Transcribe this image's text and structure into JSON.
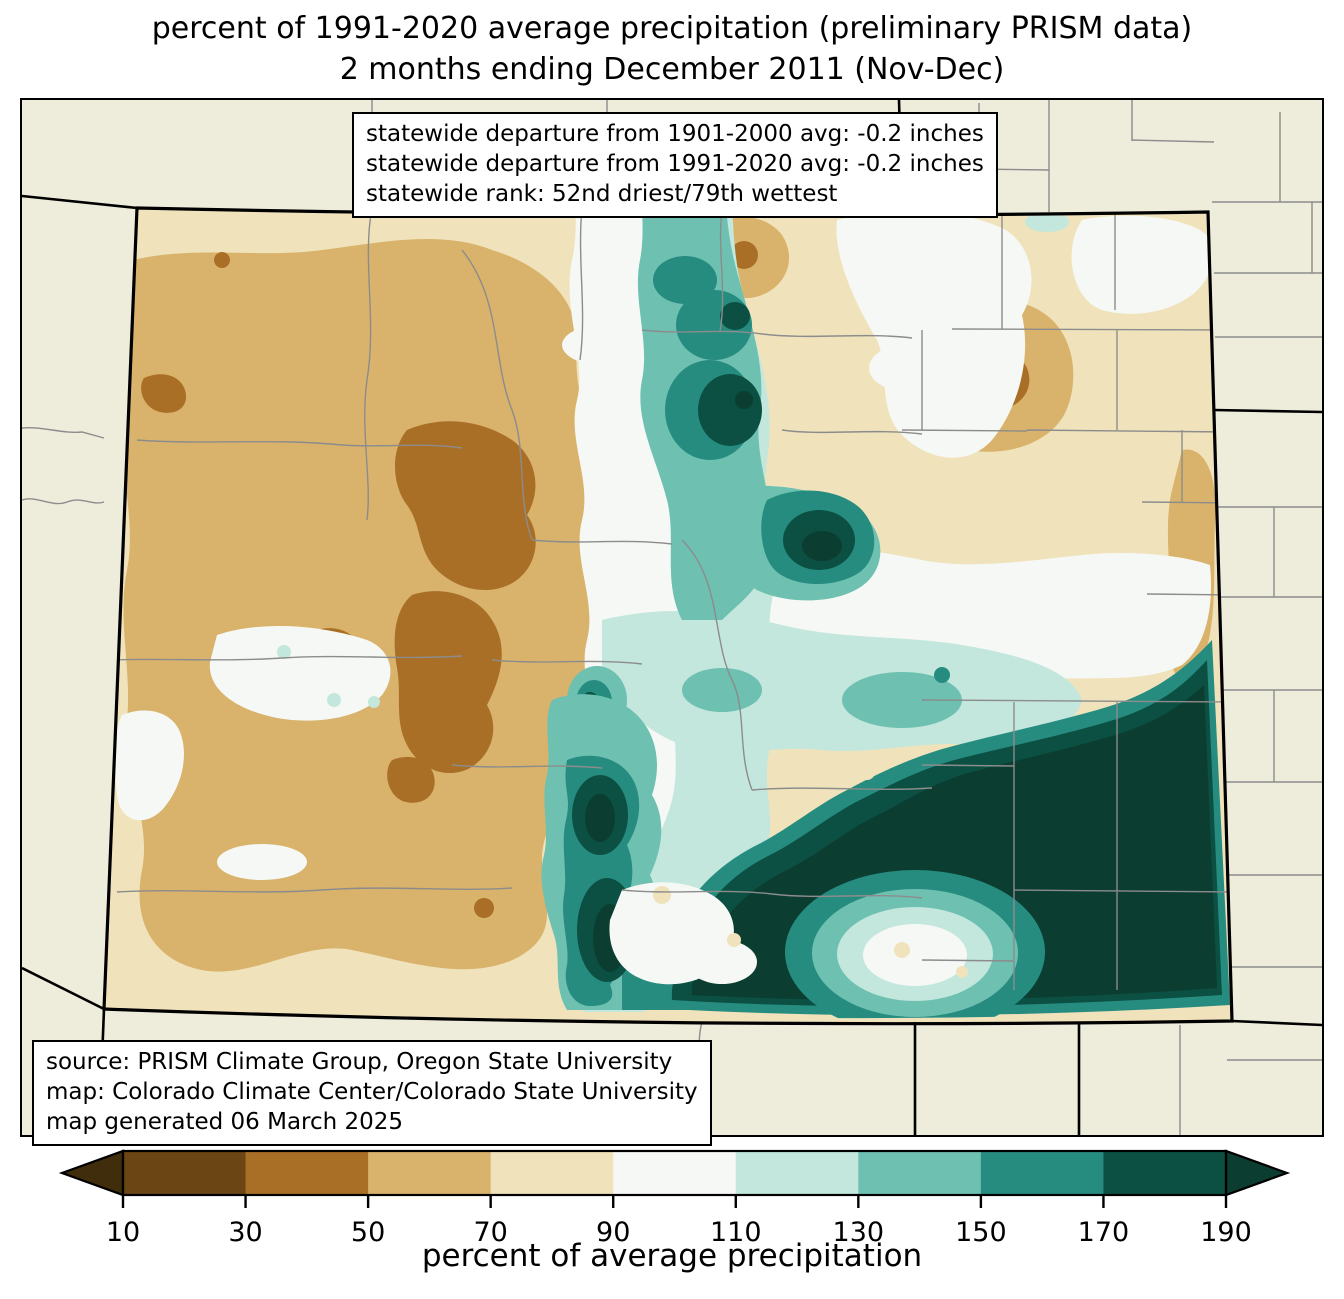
{
  "title": {
    "line1": "percent of 1991-2020 average precipitation (preliminary PRISM data)",
    "line2": "2 months ending December 2011 (Nov-Dec)"
  },
  "stats_box": {
    "line1": "statewide departure from 1901-2000 avg: -0.2 inches",
    "line2": "statewide departure from 1991-2020 avg: -0.2 inches",
    "line3": "statewide rank: 52nd driest/79th wettest"
  },
  "source_box": {
    "line1": "source: PRISM Climate Group, Oregon State University",
    "line2": "map: Colorado Climate Center/Colorado State University",
    "line3": "map generated 06 March 2025"
  },
  "colorbar": {
    "label": "percent of average precipitation",
    "ticks": [
      "10",
      "30",
      "50",
      "70",
      "90",
      "110",
      "130",
      "150",
      "170",
      "190"
    ],
    "segment_colors": [
      "#6B4513",
      "#AA6F26",
      "#D9B36B",
      "#F0E3BC",
      "#F5F8F4",
      "#C3E7DC",
      "#6EC0B1",
      "#278C80",
      "#0B5043"
    ],
    "under_color": "#402D0C",
    "over_color": "#0B3D31"
  },
  "map_colors": {
    "outside_background": "#EEECDB",
    "county_line": "#8C8C8C",
    "state_line": "#000000",
    "base_70_90": "#F0E3BC",
    "tan_50_70": "#D9B36B",
    "brown_30_50": "#AA6F26",
    "white_90_110": "#F5F8F4",
    "pale_teal_110_130": "#C3E7DC",
    "teal_130_150": "#6EC0B1",
    "teal_150_170": "#278C80",
    "dark_teal_170_190": "#0B5043",
    "darkest_teal_over_190": "#0B3D31"
  }
}
